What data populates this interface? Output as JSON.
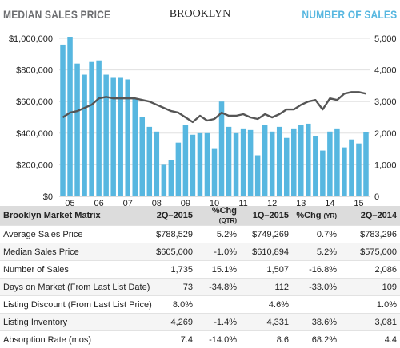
{
  "header": {
    "left": "MEDIAN SALES PRICE",
    "center": "BROOKLYN",
    "right": "NUMBER OF SALES",
    "left_color": "#6d6e71",
    "right_color": "#57b7e0"
  },
  "chart_data": {
    "type": "bar",
    "title": "BROOKLYN",
    "bar_series_name": "MEDIAN SALES PRICE",
    "line_series_name": "NUMBER OF SALES",
    "bar_color": "#57b7e0",
    "line_color": "#555555",
    "ylim_left": [
      0,
      1000000
    ],
    "ylim_right": [
      0,
      5000
    ],
    "yticks_left": [
      "$0",
      "$200,000",
      "$400,000",
      "$600,000",
      "$800,000",
      "$1,000,000"
    ],
    "yticks_right": [
      "0",
      "1,000",
      "2,000",
      "3,000",
      "4,000",
      "5,000"
    ],
    "x_tick_labels": [
      "05",
      "06",
      "07",
      "08",
      "09",
      "10",
      "11",
      "12",
      "13",
      "14",
      "15"
    ],
    "bar_values": [
      960000,
      1010000,
      840000,
      770000,
      850000,
      860000,
      770000,
      750000,
      750000,
      740000,
      620000,
      500000,
      440000,
      410000,
      200000,
      230000,
      340000,
      450000,
      390000,
      400000,
      400000,
      300000,
      600000,
      440000,
      400000,
      430000,
      420000,
      260000,
      450000,
      410000,
      440000,
      370000,
      430000,
      450000,
      460000,
      380000,
      290000,
      410000,
      430000,
      310000,
      360000,
      335000,
      405000
    ],
    "line_values": [
      2500,
      2650,
      2700,
      2800,
      2900,
      3100,
      3150,
      3100,
      3100,
      3100,
      3100,
      3050,
      3000,
      2900,
      2800,
      2700,
      2650,
      2500,
      2350,
      2550,
      2400,
      2450,
      2650,
      2550,
      2550,
      2600,
      2500,
      2450,
      2600,
      2500,
      2600,
      2750,
      2750,
      2900,
      3000,
      3050,
      2750,
      3100,
      3050,
      3250,
      3300,
      3300,
      3250
    ]
  },
  "matrix": {
    "headers": [
      "Brooklyn Market Matrix",
      "2Q–2015",
      "%Chg",
      "(QTR)",
      "1Q–2015",
      "%Chg",
      "(YR)",
      "2Q–2014"
    ],
    "rows": [
      [
        "Average Sales Price",
        "$788,529",
        "5.2%",
        "$749,269",
        "0.7%",
        "$783,296"
      ],
      [
        "Median Sales Price",
        "$605,000",
        "-1.0%",
        "$610,894",
        "5.2%",
        "$575,000"
      ],
      [
        "Number of Sales",
        "1,735",
        "15.1%",
        "1,507",
        "-16.8%",
        "2,086"
      ],
      [
        "Days on Market (From Last List Date)",
        "73",
        "-34.8%",
        "112",
        "-33.0%",
        "109"
      ],
      [
        "Listing Discount (From Last List Price)",
        "8.0%",
        "",
        "4.6%",
        "",
        "1.0%"
      ],
      [
        "Listing Inventory",
        "4,269",
        "-1.4%",
        "4,331",
        "38.6%",
        "3,081"
      ],
      [
        "Absorption Rate (mos)",
        "7.4",
        "-14.0%",
        "8.6",
        "68.2%",
        "4.4"
      ]
    ]
  }
}
